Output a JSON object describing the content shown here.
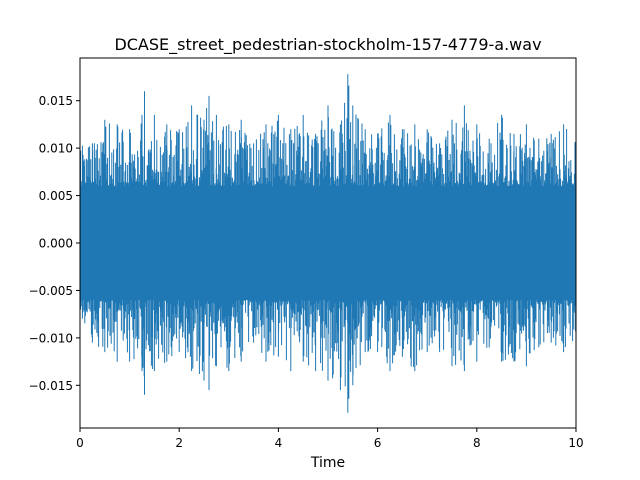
{
  "chart_data": {
    "type": "line",
    "title": "DCASE_street_pedestrian-stockholm-157-4779-a.wav",
    "xlabel": "Time",
    "ylabel": "",
    "xlim": [
      0,
      10
    ],
    "ylim": [
      -0.0195,
      0.0195
    ],
    "x_ticks": [
      {
        "value": 0,
        "label": "0"
      },
      {
        "value": 2,
        "label": "2"
      },
      {
        "value": 4,
        "label": "4"
      },
      {
        "value": 6,
        "label": "6"
      },
      {
        "value": 8,
        "label": "8"
      },
      {
        "value": 10,
        "label": "10"
      }
    ],
    "y_ticks": [
      {
        "value": 0.015,
        "label": "0.015"
      },
      {
        "value": 0.01,
        "label": "0.010"
      },
      {
        "value": 0.005,
        "label": "0.005"
      },
      {
        "value": 0.0,
        "label": "0.000"
      },
      {
        "value": -0.005,
        "label": "−0.005"
      },
      {
        "value": -0.01,
        "label": "−0.010"
      },
      {
        "value": -0.015,
        "label": "−0.015"
      }
    ],
    "grid": false,
    "legend": "none",
    "series": [
      {
        "color": "#1f77b4",
        "envelope": {
          "x": [
            0.0,
            0.25,
            0.5,
            0.75,
            1.0,
            1.25,
            1.3,
            1.5,
            1.75,
            2.0,
            2.25,
            2.5,
            2.6,
            2.75,
            3.0,
            3.25,
            3.5,
            3.75,
            4.0,
            4.25,
            4.5,
            4.75,
            5.0,
            5.25,
            5.4,
            5.5,
            5.75,
            6.0,
            6.25,
            6.5,
            6.75,
            7.0,
            7.25,
            7.5,
            7.75,
            8.0,
            8.25,
            8.5,
            8.75,
            9.0,
            9.25,
            9.5,
            9.75,
            10.0
          ],
          "max": [
            0.0115,
            0.0105,
            0.013,
            0.0125,
            0.012,
            0.0135,
            0.016,
            0.0135,
            0.0125,
            0.012,
            0.0145,
            0.013,
            0.0155,
            0.0135,
            0.0125,
            0.013,
            0.0105,
            0.0125,
            0.0135,
            0.012,
            0.0135,
            0.0115,
            0.0145,
            0.0125,
            0.0178,
            0.0145,
            0.012,
            0.0115,
            0.0135,
            0.012,
            0.0125,
            0.012,
            0.0105,
            0.013,
            0.0145,
            0.0125,
            0.011,
            0.0135,
            0.0115,
            0.0125,
            0.011,
            0.0115,
            0.0125,
            0.0105
          ],
          "min": [
            -0.0105,
            -0.0105,
            -0.0115,
            -0.0125,
            -0.0125,
            -0.0135,
            -0.016,
            -0.0135,
            -0.0125,
            -0.0115,
            -0.0135,
            -0.0145,
            -0.0155,
            -0.013,
            -0.0135,
            -0.0125,
            -0.0105,
            -0.0125,
            -0.012,
            -0.0135,
            -0.0125,
            -0.0135,
            -0.0145,
            -0.0155,
            -0.0179,
            -0.015,
            -0.0115,
            -0.0115,
            -0.0135,
            -0.012,
            -0.0135,
            -0.0115,
            -0.0115,
            -0.013,
            -0.0135,
            -0.0125,
            -0.011,
            -0.0125,
            -0.0125,
            -0.013,
            -0.011,
            -0.0105,
            -0.0115,
            -0.0105
          ]
        }
      }
    ]
  }
}
